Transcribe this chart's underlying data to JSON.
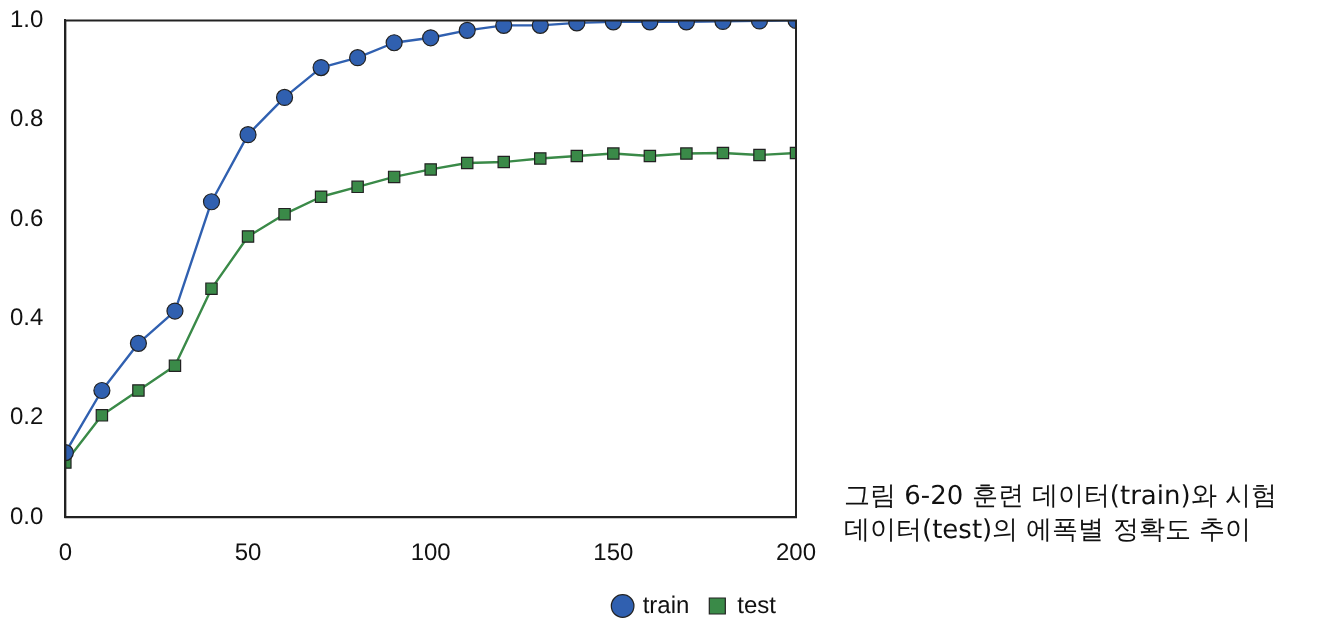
{
  "chart_data": {
    "type": "line",
    "x": [
      0,
      10,
      20,
      30,
      40,
      50,
      60,
      70,
      80,
      90,
      100,
      110,
      120,
      130,
      140,
      150,
      160,
      170,
      180,
      190,
      200
    ],
    "series": [
      {
        "name": "train",
        "color": "#3060b0",
        "marker": "circle",
        "values": [
          0.13,
          0.255,
          0.35,
          0.415,
          0.635,
          0.77,
          0.845,
          0.905,
          0.925,
          0.955,
          0.965,
          0.98,
          0.99,
          0.99,
          0.995,
          0.997,
          0.997,
          0.997,
          0.998,
          0.999,
          1.0
        ]
      },
      {
        "name": "test",
        "color": "#3a8a48",
        "marker": "square",
        "values": [
          0.11,
          0.205,
          0.255,
          0.305,
          0.46,
          0.565,
          0.61,
          0.645,
          0.665,
          0.685,
          0.7,
          0.713,
          0.715,
          0.722,
          0.727,
          0.732,
          0.727,
          0.732,
          0.733,
          0.729,
          0.733
        ]
      }
    ],
    "xlim": [
      0,
      200
    ],
    "xticks": [
      0,
      50,
      100,
      150,
      200
    ],
    "ylim": [
      0,
      1.0
    ],
    "yticks": [
      {
        "value": 0,
        "label": "0.0"
      },
      {
        "value": 0.2,
        "label": "0.2"
      },
      {
        "value": 0.4,
        "label": "0.4"
      },
      {
        "value": 0.6,
        "label": "0.6"
      },
      {
        "value": 0.8,
        "label": "0.8"
      },
      {
        "value": 1.0,
        "label": "1.0"
      }
    ],
    "grid": false,
    "legend": "bottom right",
    "line_style": "solid",
    "annotations": [
      "그림 6-20 훈련 데이터(train)와 시험 데이터(test)의 에폭별 정확도 추이"
    ]
  }
}
